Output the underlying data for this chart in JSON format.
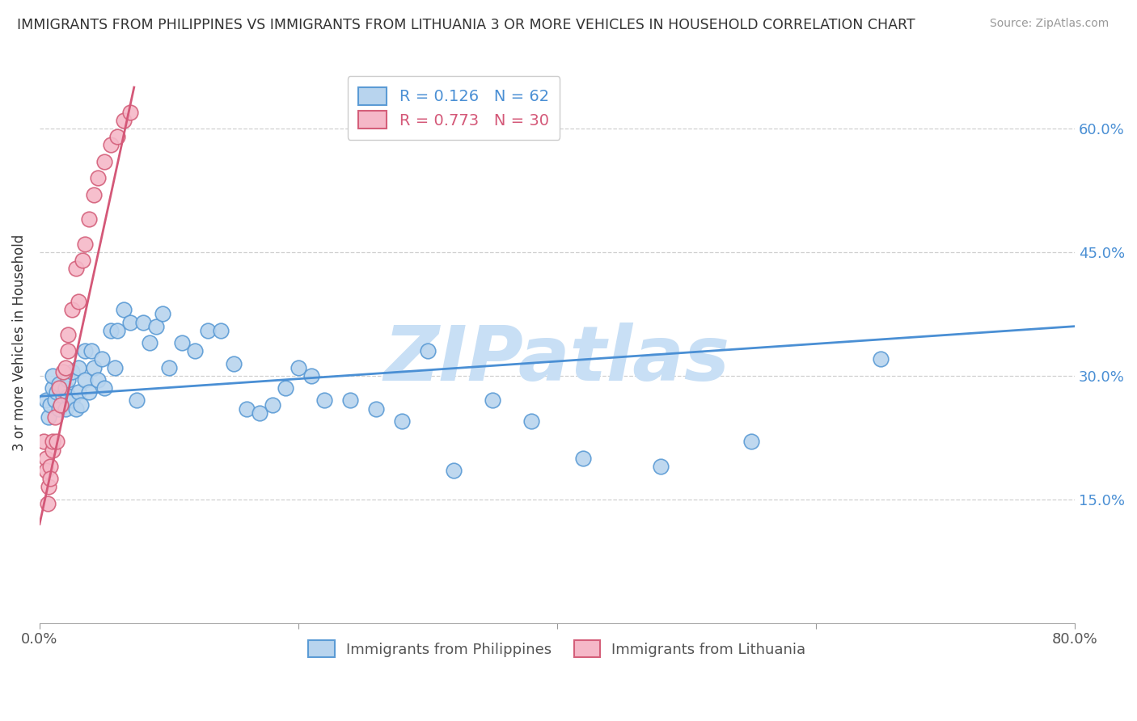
{
  "title": "IMMIGRANTS FROM PHILIPPINES VS IMMIGRANTS FROM LITHUANIA 3 OR MORE VEHICLES IN HOUSEHOLD CORRELATION CHART",
  "source": "Source: ZipAtlas.com",
  "ylabel": "3 or more Vehicles in Household",
  "legend_entry1": "R = 0.126   N = 62",
  "legend_entry2": "R = 0.773   N = 30",
  "legend_label1": "Immigrants from Philippines",
  "legend_label2": "Immigrants from Lithuania",
  "xlim": [
    0.0,
    0.8
  ],
  "ylim": [
    0.0,
    0.68
  ],
  "xtick_positions": [
    0.0,
    0.2,
    0.4,
    0.6,
    0.8
  ],
  "xtick_labels": [
    "0.0%",
    "",
    "",
    "",
    "80.0%"
  ],
  "ytick_positions": [
    0.15,
    0.3,
    0.45,
    0.6
  ],
  "ytick_labels": [
    "15.0%",
    "30.0%",
    "45.0%",
    "60.0%"
  ],
  "color_philippines": "#b8d4ee",
  "color_philippines_edge": "#5b9bd5",
  "color_lithuania": "#f5b8c8",
  "color_lithuania_edge": "#d45f7a",
  "color_philippines_line": "#4a8fd4",
  "color_lithuania_line": "#d45878",
  "watermark": "ZIPatlas",
  "watermark_color": "#c8dff5",
  "background_color": "#ffffff",
  "philippines_x": [
    0.005,
    0.007,
    0.008,
    0.01,
    0.01,
    0.012,
    0.013,
    0.015,
    0.015,
    0.018,
    0.02,
    0.02,
    0.022,
    0.022,
    0.025,
    0.025,
    0.028,
    0.03,
    0.03,
    0.032,
    0.035,
    0.035,
    0.038,
    0.04,
    0.042,
    0.045,
    0.048,
    0.05,
    0.055,
    0.058,
    0.06,
    0.065,
    0.07,
    0.075,
    0.08,
    0.085,
    0.09,
    0.095,
    0.1,
    0.11,
    0.12,
    0.13,
    0.14,
    0.15,
    0.16,
    0.17,
    0.18,
    0.19,
    0.2,
    0.21,
    0.22,
    0.24,
    0.26,
    0.28,
    0.3,
    0.32,
    0.35,
    0.38,
    0.42,
    0.48,
    0.55,
    0.65
  ],
  "philippines_y": [
    0.27,
    0.25,
    0.265,
    0.285,
    0.3,
    0.27,
    0.28,
    0.26,
    0.29,
    0.275,
    0.26,
    0.285,
    0.295,
    0.275,
    0.27,
    0.305,
    0.26,
    0.28,
    0.31,
    0.265,
    0.33,
    0.295,
    0.28,
    0.33,
    0.31,
    0.295,
    0.32,
    0.285,
    0.355,
    0.31,
    0.355,
    0.38,
    0.365,
    0.27,
    0.365,
    0.34,
    0.36,
    0.375,
    0.31,
    0.34,
    0.33,
    0.355,
    0.355,
    0.315,
    0.26,
    0.255,
    0.265,
    0.285,
    0.31,
    0.3,
    0.27,
    0.27,
    0.26,
    0.245,
    0.33,
    0.185,
    0.27,
    0.245,
    0.2,
    0.19,
    0.22,
    0.32
  ],
  "lithuania_x": [
    0.003,
    0.005,
    0.005,
    0.006,
    0.007,
    0.008,
    0.008,
    0.01,
    0.01,
    0.012,
    0.013,
    0.015,
    0.016,
    0.018,
    0.02,
    0.022,
    0.022,
    0.025,
    0.028,
    0.03,
    0.033,
    0.035,
    0.038,
    0.042,
    0.045,
    0.05,
    0.055,
    0.06,
    0.065,
    0.07
  ],
  "lithuania_y": [
    0.22,
    0.2,
    0.185,
    0.145,
    0.165,
    0.19,
    0.175,
    0.21,
    0.22,
    0.25,
    0.22,
    0.285,
    0.265,
    0.305,
    0.31,
    0.33,
    0.35,
    0.38,
    0.43,
    0.39,
    0.44,
    0.46,
    0.49,
    0.52,
    0.54,
    0.56,
    0.58,
    0.59,
    0.61,
    0.62
  ],
  "philippines_trend_x": [
    0.0,
    0.8
  ],
  "philippines_trend_y": [
    0.275,
    0.36
  ],
  "lithuania_trend_x": [
    0.0,
    0.073
  ],
  "lithuania_trend_y": [
    0.12,
    0.65
  ]
}
